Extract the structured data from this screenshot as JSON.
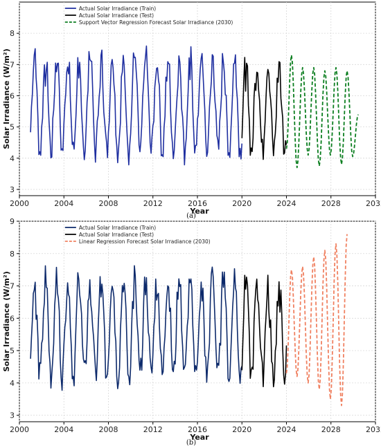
{
  "chart_data": [
    {
      "type": "line",
      "panel_label": "(a)",
      "xlabel": "Year",
      "ylabel": "Solar Irradiance (W/m²)",
      "xlim": [
        2000,
        2032
      ],
      "ylim": [
        2.8,
        9.0
      ],
      "xticks": [
        2000,
        2004,
        2008,
        2012,
        2016,
        2020,
        2024,
        2028,
        2032
      ],
      "yticks": [
        3,
        4,
        5,
        6,
        7,
        8
      ],
      "grid": true,
      "legend_position": "top-left",
      "series": [
        {
          "name": "Actual Solar Irradiance (Train)",
          "color": "#1f2fa0",
          "style": "solid",
          "x_start": 2001.0,
          "x_end": 2020.0,
          "mean": 5.75,
          "amplitude": 1.55
        },
        {
          "name": "Actual Solar Irradiance (Test)",
          "color": "#000000",
          "style": "solid",
          "x_start": 2020.0,
          "x_end": 2024.0,
          "mean": 5.7,
          "amplitude": 1.5
        },
        {
          "name": "Support Vector Regression Forecast Solar Irradiance (2030)",
          "color": "#0a7d1e",
          "style": "dashed",
          "x_start": 2024.0,
          "x_end": 2031.0,
          "mean": 5.4,
          "amplitude": 1.5,
          "peaks": [
            7.3,
            6.9,
            6.9,
            6.8,
            6.9,
            6.8,
            5.4
          ],
          "troughs": [
            3.7,
            4.1,
            3.75,
            4.1,
            3.8,
            4.05
          ]
        }
      ]
    },
    {
      "type": "line",
      "panel_label": "(b)",
      "xlabel": "Year",
      "ylabel": "Solar Irradiance (W/m²)",
      "xlim": [
        2000,
        2032
      ],
      "ylim": [
        2.8,
        9.0
      ],
      "xticks": [
        2000,
        2004,
        2008,
        2012,
        2016,
        2020,
        2024,
        2028,
        2032
      ],
      "yticks": [
        3,
        4,
        5,
        6,
        7,
        8,
        9
      ],
      "grid": true,
      "legend_position": "top-left",
      "series": [
        {
          "name": "Actual Solar Irradiance (Train)",
          "color": "#0d2a6b",
          "style": "solid",
          "x_start": 2001.0,
          "x_end": 2020.0,
          "mean": 5.75,
          "amplitude": 1.55
        },
        {
          "name": "Actual Solar Irradiance (Test)",
          "color": "#000000",
          "style": "solid",
          "x_start": 2020.0,
          "x_end": 2024.0,
          "mean": 5.7,
          "amplitude": 1.5
        },
        {
          "name": "Linear Regression Forecast Solar Irradiance (2030)",
          "color": "#f08060",
          "style": "dashed",
          "x_start": 2024.0,
          "x_end": 2031.0,
          "peaks": [
            7.5,
            7.6,
            7.9,
            8.1,
            8.3,
            8.6
          ],
          "troughs": [
            4.2,
            4.0,
            3.8,
            3.5,
            3.3
          ]
        }
      ]
    }
  ]
}
